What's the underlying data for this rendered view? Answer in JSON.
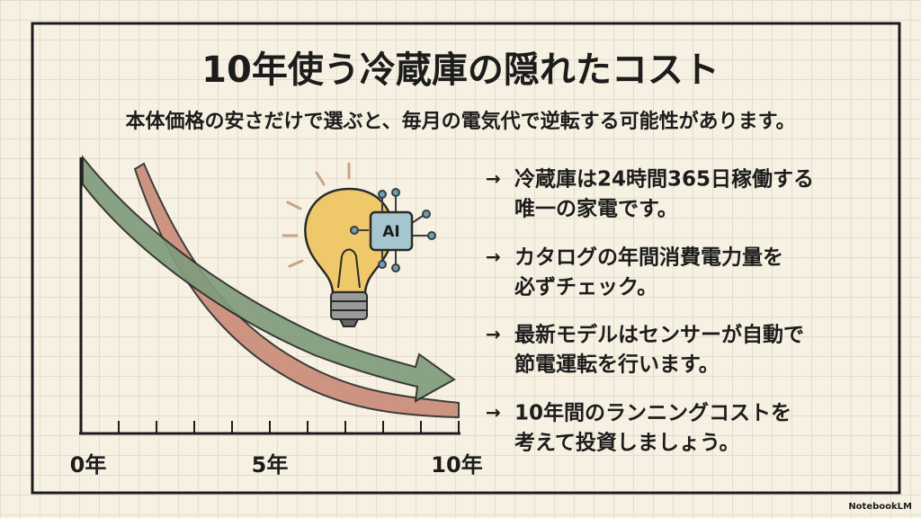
{
  "header": {
    "title": "10年使う冷蔵庫の隠れたコスト",
    "subtitle": "本体価格の安さだけで選ぶと、毎月の電気代で逆転する可能性があります。"
  },
  "chart": {
    "x_labels": [
      "0年",
      "5年",
      "10年"
    ]
  },
  "bullets": [
    [
      "冷蔵庫は24時間365日稼働する",
      "唯一の家電です。"
    ],
    [
      "カタログの年間消費電力量を",
      "必ずチェック。"
    ],
    [
      "最新モデルはセンサーが自動で",
      "節電運転を行います。"
    ],
    [
      "10年間のランニングコストを",
      "考えて投資しましょう。"
    ]
  ],
  "badge": "AI",
  "watermark": "NotebookLM"
}
